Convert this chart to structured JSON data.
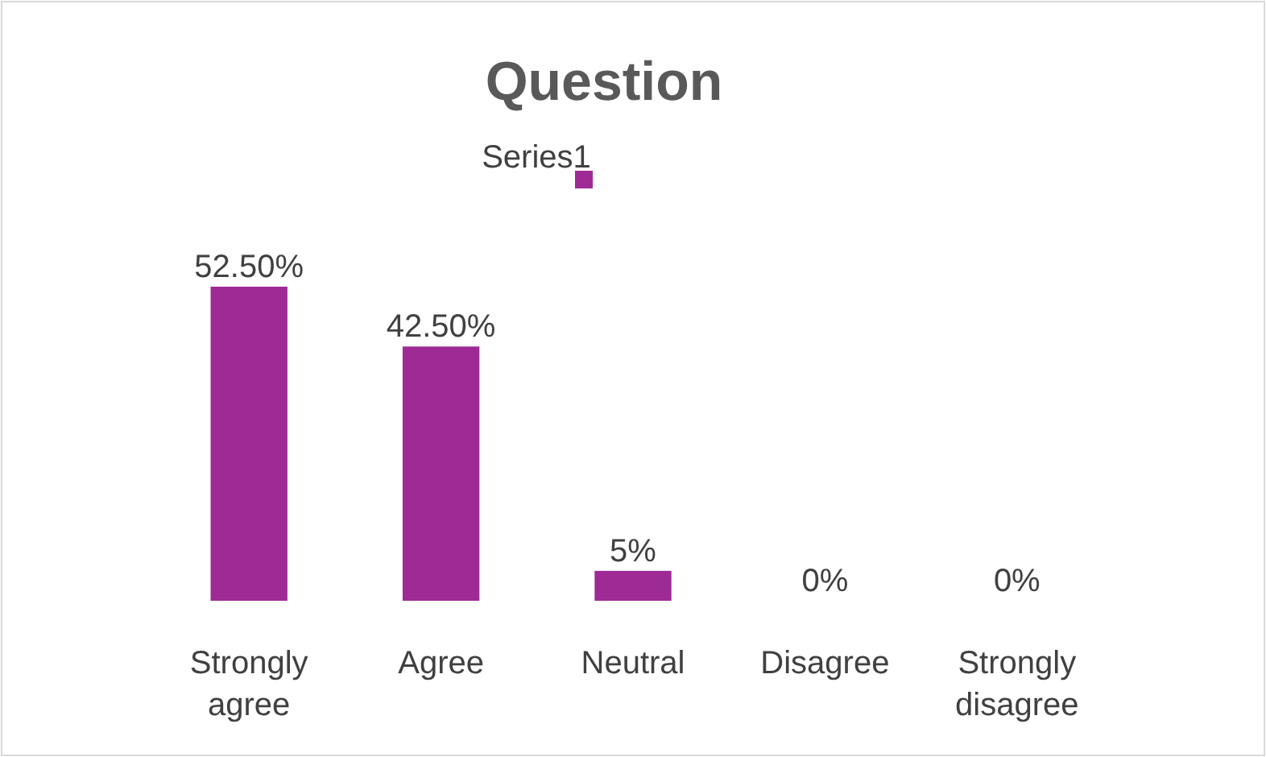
{
  "chart_data": {
    "type": "bar",
    "title": "Question",
    "categories": [
      "Strongly agree",
      "Agree",
      "Neutral",
      "Disagree",
      "Strongly disagree"
    ],
    "series": [
      {
        "name": "Series1",
        "color": "#9e2a96",
        "values": [
          52.5,
          42.5,
          5,
          0,
          0
        ],
        "value_labels": [
          "52.50%",
          "42.50%",
          "5%",
          "0%",
          "0%"
        ]
      }
    ],
    "tick_labels": "x",
    "legend": "top"
  }
}
